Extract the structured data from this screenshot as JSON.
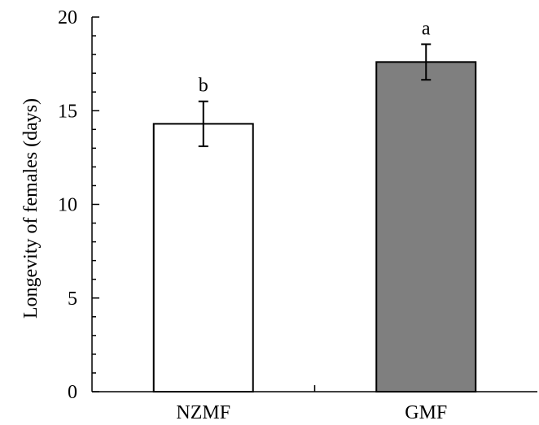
{
  "chart_data": {
    "type": "bar",
    "title": "",
    "xlabel": "",
    "ylabel": "Longevity of females (days)",
    "ylim": [
      0,
      20
    ],
    "yticks": [
      0,
      5,
      10,
      15,
      20
    ],
    "y_minor_step": 1,
    "categories": [
      "NZMF",
      "GMF"
    ],
    "values": [
      14.3,
      17.6
    ],
    "error": [
      1.2,
      0.95
    ],
    "significance": [
      "b",
      "a"
    ],
    "colors": [
      "#ffffff",
      "#7f7f7f"
    ],
    "grid": false,
    "legend": "none"
  }
}
